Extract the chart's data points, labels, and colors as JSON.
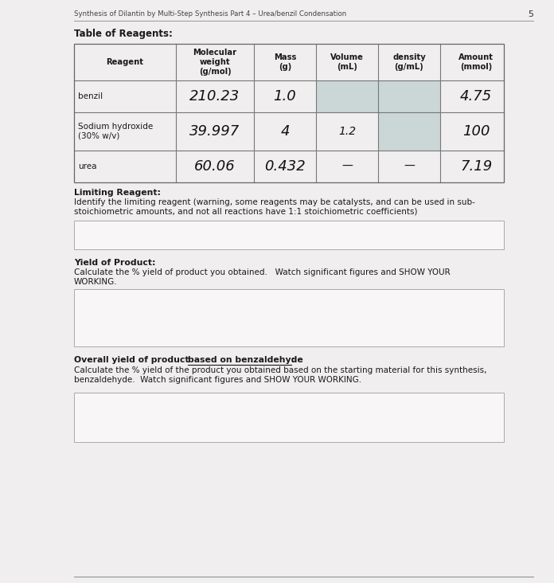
{
  "page_number": "5",
  "header_text": "Synthesis of Dilantin by Multi-Step Synthesis Part 4 – Urea/benzil Condensation",
  "section_title": "Table of Reagents:",
  "table_headers": [
    "Reagent",
    "Molecular\nweight\n(g/mol)",
    "Mass\n(g)",
    "Volume\n(mL)",
    "density\n(g/mL)",
    "Amount\n(mmol)"
  ],
  "table_rows": [
    [
      "benzil",
      "210.23",
      "1.0",
      "",
      "",
      "4.75"
    ],
    [
      "Sodium hydroxide\n(30% w/v)",
      "39.997",
      "4",
      "1.2",
      "",
      "100"
    ],
    [
      "urea",
      "60.06",
      "0.432",
      "—",
      "—",
      "7.19"
    ]
  ],
  "shaded_color": "#adc4c4",
  "limiting_reagent_label": "Limiting Reagent:",
  "limiting_reagent_text": "Identify the limiting reagent (warning, some reagents may be catalysts, and can be used in sub-\nstoichiometric amounts, and not all reactions have 1:1 stoichiometric coefficients)",
  "yield_label": "Yield of Product:",
  "yield_text": "Calculate the % yield of product you obtained.   Watch significant figures and SHOW YOUR\nWORKING.",
  "overall_yield_label_part1": "Overall yield of product ",
  "overall_yield_label_underline": "based on benzaldehyde",
  "overall_yield_label_end": ":",
  "overall_yield_text": "Calculate the % yield of the product you obtained based on the starting material for this synthesis,\nbenzaldehyde.  Watch significant figures and SHOW YOUR WORKING.",
  "bg_color": "#f0eeee",
  "box_color": "#f8f6f6",
  "text_color": "#1a1a1a",
  "border_color": "#888888",
  "header_line_color": "#888888"
}
